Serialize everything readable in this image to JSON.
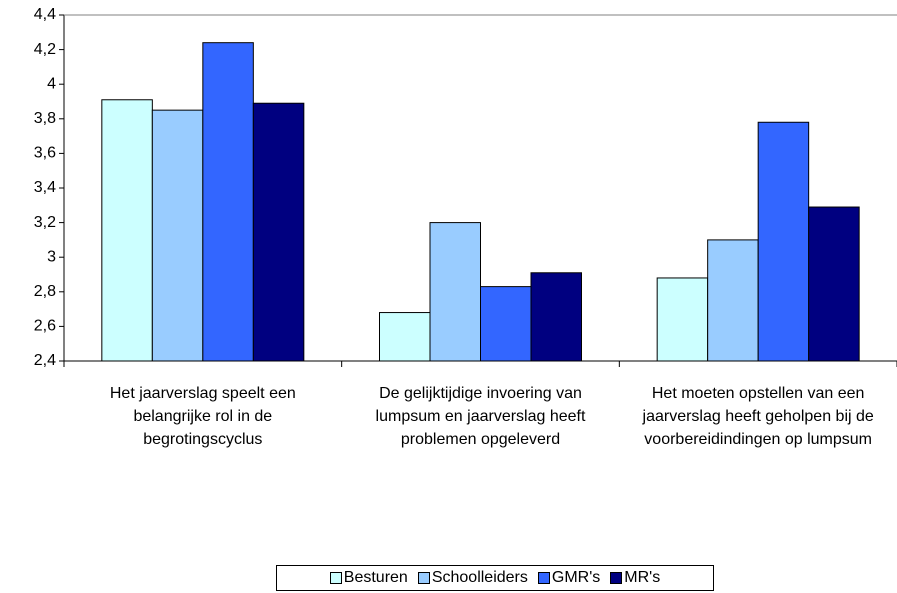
{
  "chart_data": {
    "type": "bar",
    "categories": [
      "Het jaarverslag speelt een belangrijke rol in de begrotingscyclus",
      "De gelijktijdige invoering van lumpsum en jaarverslag heeft problemen opgeleverd",
      "Het moeten opstellen van een jaarverslag heeft geholpen bij de voorbereidindingen op lumpsum"
    ],
    "series": [
      {
        "name": "Besturen",
        "color": "#ccffff",
        "values": [
          3.91,
          2.68,
          2.88
        ]
      },
      {
        "name": "Schoolleiders",
        "color": "#99ccff",
        "values": [
          3.85,
          3.2,
          3.1
        ]
      },
      {
        "name": "GMR's",
        "color": "#3366ff",
        "values": [
          4.24,
          2.83,
          3.78
        ]
      },
      {
        "name": "MR's",
        "color": "#000080",
        "values": [
          3.89,
          2.91,
          3.29
        ]
      }
    ],
    "ylim": [
      2.4,
      4.4
    ],
    "yticks": [
      {
        "value": 2.4,
        "label": "2,4"
      },
      {
        "value": 2.6,
        "label": "2,6"
      },
      {
        "value": 2.8,
        "label": "2,8"
      },
      {
        "value": 3,
        "label": "3"
      },
      {
        "value": 3.2,
        "label": "3,2"
      },
      {
        "value": 3.4,
        "label": "3,4"
      },
      {
        "value": 3.6,
        "label": "3,6"
      },
      {
        "value": 3.8,
        "label": "3,8"
      },
      {
        "value": 4,
        "label": "4"
      },
      {
        "value": 4.2,
        "label": "4,2"
      },
      {
        "value": 4.4,
        "label": "4,4"
      }
    ],
    "legend": "bottom"
  }
}
